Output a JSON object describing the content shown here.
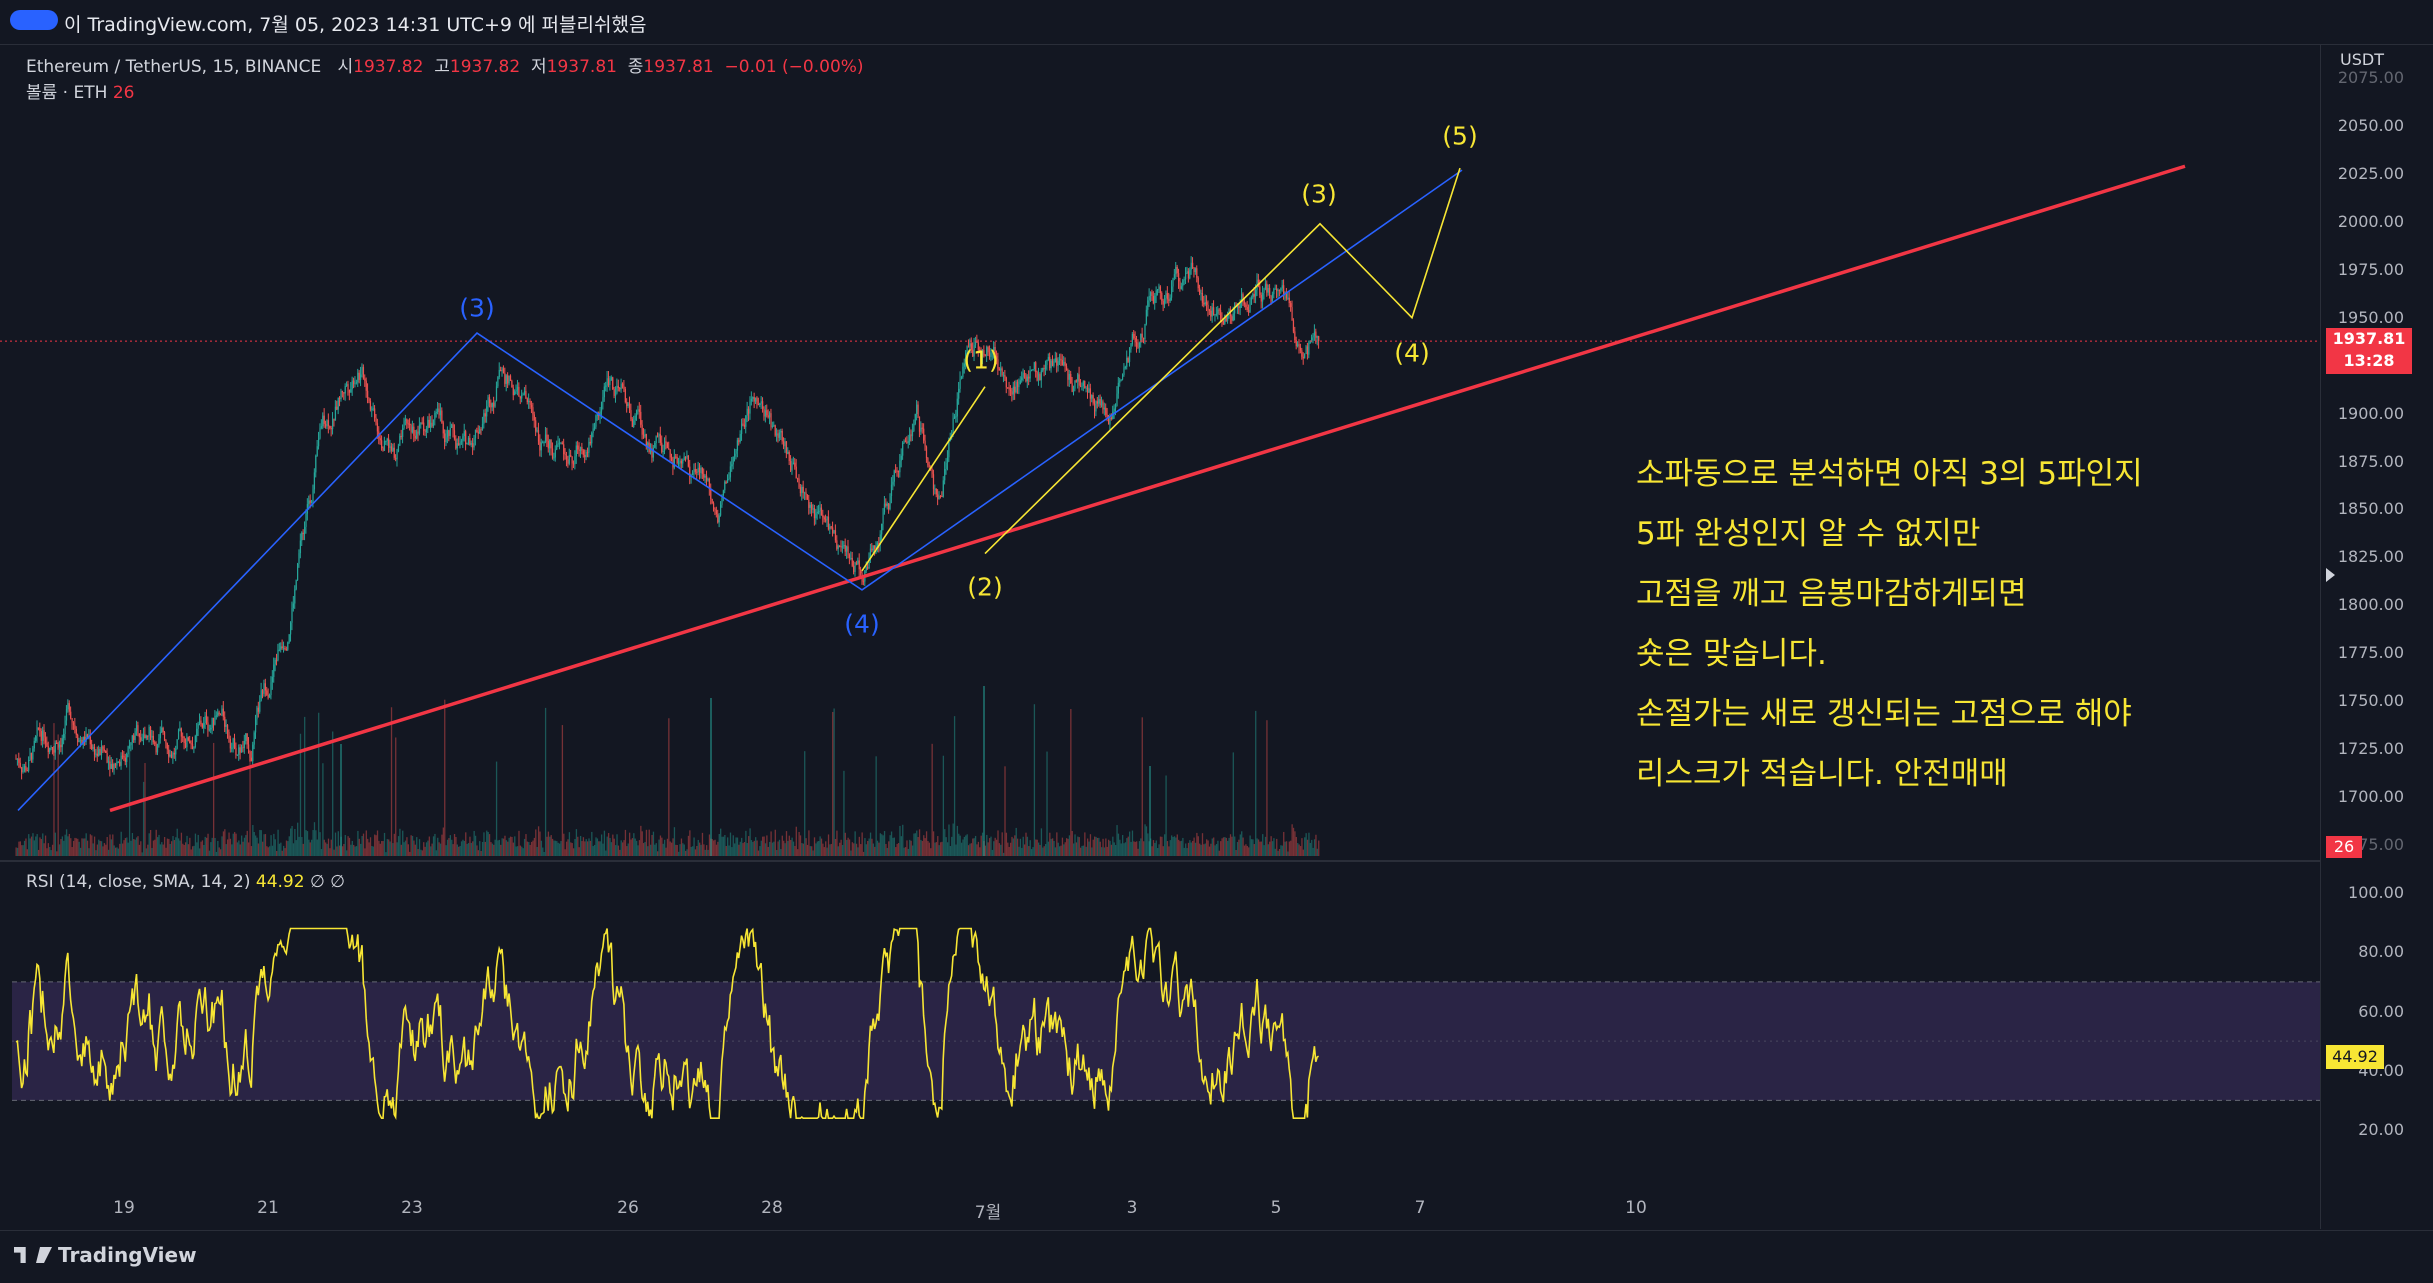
{
  "header": {
    "text": "이 TradingView.com, 7월 05, 2023 14:31 UTC+9 에 퍼블리쉬했음"
  },
  "legend": {
    "symbol": "Ethereum / TetherUS, 15, BINANCE",
    "ohlc_prefix_open": "시",
    "open": "1937.82",
    "ohlc_prefix_high": "고",
    "high": "1937.82",
    "ohlc_prefix_low": "저",
    "low": "1937.81",
    "ohlc_prefix_close": "종",
    "close": "1937.81",
    "change": "−0.01 (−0.00%)",
    "volume_label": "볼륨 · ETH",
    "volume_value": "26"
  },
  "rsi_legend": {
    "label": "RSI (14, close, SMA, 14, 2)",
    "value": "44.92",
    "extra": "∅ ∅"
  },
  "price_axis": {
    "currency": "USDT",
    "last_price": "1937.81",
    "countdown": "13:28",
    "volume_tag": "26",
    "top_partial": "2075.00",
    "bottom_partial": "1675.00"
  },
  "rsi_axis": {
    "value_tag": "44.92"
  },
  "note": {
    "lines": [
      "소파동으로 분석하면 아직 3의 5파인지",
      "5파 완성인지 알 수 없지만",
      "고점을 깨고 음봉마감하게되면",
      "숏은 맞습니다.",
      "손절가는 새로 갱신되는 고점으로 해야",
      "리스크가 적습니다. 안전매매"
    ]
  },
  "waves": {
    "blue_3": "(3)",
    "blue_4": "(4)",
    "y_1": "(1)",
    "y_2": "(2)",
    "y_3": "(3)",
    "y_4": "(4)",
    "y_5": "(5)"
  },
  "footer": {
    "brand": "TradingView"
  },
  "colors": {
    "background": "#131722",
    "candle_up": "#26a69a",
    "candle_down": "#ef5350",
    "trendline": "#f23645",
    "blue_wave": "#2962ff",
    "yellow_wave": "#f7e634",
    "rsi_line": "#f7e634",
    "rsi_band": "#7e57c2"
  },
  "chart_data": [
    {
      "type": "candlestick",
      "title": "Ethereum / TetherUS, 15, BINANCE",
      "ylabel": "USDT",
      "ylim": [
        1675,
        2080
      ],
      "yticks": [
        2050,
        2025,
        2000,
        1975,
        1950,
        1925,
        1900,
        1875,
        1850,
        1825,
        1800,
        1775,
        1750,
        1725,
        1700
      ],
      "xticks": [
        "19",
        "21",
        "23",
        "26",
        "28",
        "7월",
        "3",
        "5",
        "7",
        "10"
      ],
      "last_price": 1937.81,
      "price_path": [
        {
          "date": "6월 18",
          "price": 1720
        },
        {
          "date": "6월 18",
          "price": 1745
        },
        {
          "date": "6월 19",
          "price": 1722
        },
        {
          "date": "6월 19",
          "price": 1735
        },
        {
          "date": "6월 20",
          "price": 1728
        },
        {
          "date": "6월 20",
          "price": 1740
        },
        {
          "date": "6월 21",
          "price": 1725
        },
        {
          "date": "6월 21",
          "price": 1790
        },
        {
          "date": "6월 22",
          "price": 1890
        },
        {
          "date": "6월 22",
          "price": 1930
        },
        {
          "date": "6월 23",
          "price": 1880
        },
        {
          "date": "6월 23",
          "price": 1895
        },
        {
          "date": "6월 24",
          "price": 1880
        },
        {
          "date": "6월 24",
          "price": 1925
        },
        {
          "date": "6월 25",
          "price": 1890
        },
        {
          "date": "6월 25",
          "price": 1875
        },
        {
          "date": "6월 26",
          "price": 1920
        },
        {
          "date": "6월 26",
          "price": 1885
        },
        {
          "date": "6월 27",
          "price": 1880
        },
        {
          "date": "6월 27",
          "price": 1855
        },
        {
          "date": "6월 28",
          "price": 1905
        },
        {
          "date": "6월 28",
          "price": 1875
        },
        {
          "date": "6월 29",
          "price": 1840
        },
        {
          "date": "6월 29",
          "price": 1818
        },
        {
          "date": "6월 30",
          "price": 1860
        },
        {
          "date": "6월 30",
          "price": 1905
        },
        {
          "date": "6월 30",
          "price": 1850
        },
        {
          "date": "7월 1",
          "price": 1945
        },
        {
          "date": "7월 1",
          "price": 1920
        },
        {
          "date": "7월 2",
          "price": 1925
        },
        {
          "date": "7월 2",
          "price": 1915
        },
        {
          "date": "7월 3",
          "price": 1905
        },
        {
          "date": "7월 3",
          "price": 1960
        },
        {
          "date": "7월 4",
          "price": 1975
        },
        {
          "date": "7월 4",
          "price": 1955
        },
        {
          "date": "7월 5",
          "price": 1965
        },
        {
          "date": "7월 5",
          "price": 1937.81
        }
      ]
    },
    {
      "type": "line",
      "title": "RSI (14, close, SMA, 14, 2)",
      "ylim": [
        10,
        110
      ],
      "yticks": [
        100,
        80,
        60,
        40,
        20
      ],
      "band": [
        30,
        70
      ],
      "last_value": 44.92
    }
  ]
}
